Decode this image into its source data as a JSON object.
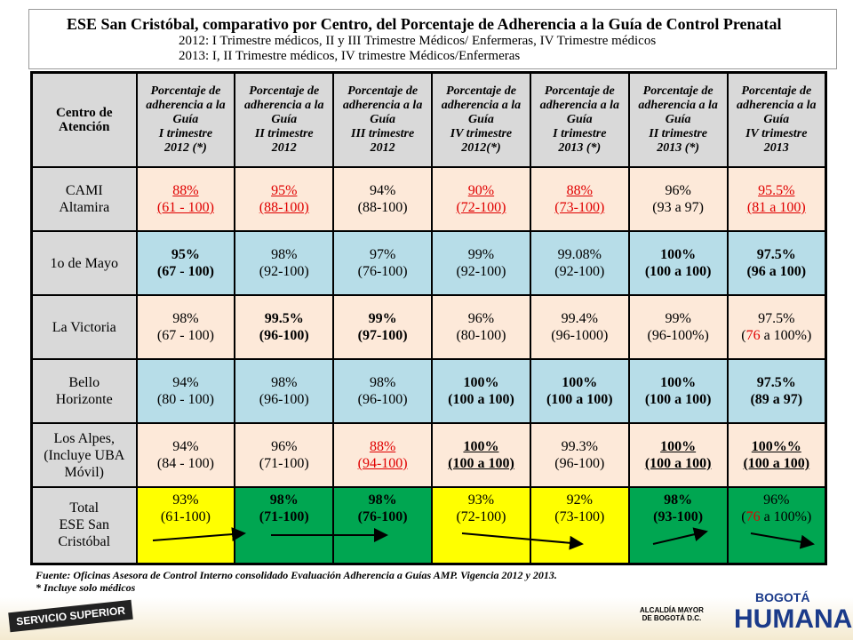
{
  "header": {
    "title": "ESE San Cristóbal, comparativo por Centro, del Porcentaje de Adherencia a la Guía de Control Prenatal",
    "subtitle_lines": [
      "2012: I Trimestre médicos, II  y III Trimestre Médicos/ Enfermeras,  IV Trimestre médicos",
      "2013: I, II Trimestre médicos, IV trimestre Médicos/Enfermeras"
    ]
  },
  "table": {
    "columns": [
      [
        "Centro de",
        "Atención"
      ],
      [
        "Porcentaje de",
        "adherencia a la",
        "Guía",
        "I trimestre",
        "2012 (*)"
      ],
      [
        "Porcentaje de",
        "adherencia a la",
        "Guía",
        "II trimestre",
        "2012"
      ],
      [
        "Porcentaje de",
        "adherencia a la",
        "Guía",
        "III trimestre",
        "2012"
      ],
      [
        "Porcentaje de",
        "adherencia a la",
        "Guía",
        "IV trimestre",
        "2012(*)"
      ],
      [
        "Porcentaje de",
        "adherencia a la",
        "Guía",
        "I trimestre",
        "2013 (*)"
      ],
      [
        "Porcentaje de",
        "adherencia a la",
        "Guía",
        "II trimestre",
        "2013 (*)"
      ],
      [
        "Porcentaje de",
        "adherencia a la",
        "Guía",
        "IV trimestre",
        "2013"
      ]
    ],
    "rows": [
      {
        "center": [
          "CAMI",
          "Altamira"
        ],
        "background": "#fde9d9",
        "cells": [
          {
            "pct": "88%",
            "range": "(61 - 100)",
            "style": "red-underline"
          },
          {
            "pct": "95%",
            "range": "(88-100)",
            "style": "red-underline"
          },
          {
            "pct": "94%",
            "range": "(88-100)",
            "style": "normal"
          },
          {
            "pct": "90%",
            "range": "(72-100)",
            "style": "red-underline"
          },
          {
            "pct": "88%",
            "range": "(73-100)",
            "style": "red-underline"
          },
          {
            "pct": "96%",
            "range": "(93 a 97)",
            "style": "normal"
          },
          {
            "pct": "95.5%",
            "range": "(81 a 100)",
            "style": "red-underline"
          }
        ]
      },
      {
        "center": [
          "1o de Mayo"
        ],
        "background": "#b7dde8",
        "cells": [
          {
            "pct": "95%",
            "range": "(67 - 100)",
            "style": "bold"
          },
          {
            "pct": "98%",
            "range": "(92-100)",
            "style": "normal"
          },
          {
            "pct": "97%",
            "range": "(76-100)",
            "style": "normal"
          },
          {
            "pct": "99%",
            "range": "(92-100)",
            "style": "normal"
          },
          {
            "pct": "99.08%",
            "range": "(92-100)",
            "style": "normal"
          },
          {
            "pct": "100%",
            "range": "(100 a 100)",
            "style": "bold"
          },
          {
            "pct": "97.5%",
            "range": "(96 a 100)",
            "style": "bold"
          }
        ]
      },
      {
        "center": [
          "La Victoria"
        ],
        "background": "#fde9d9",
        "cells": [
          {
            "pct": "98%",
            "range": "(67 - 100)",
            "style": "normal"
          },
          {
            "pct": "99.5%",
            "range": "(96-100)",
            "style": "bold"
          },
          {
            "pct": "99%",
            "range": "(97-100)",
            "style": "bold"
          },
          {
            "pct": "96%",
            "range": "(80-100)",
            "style": "normal"
          },
          {
            "pct": "99.4%",
            "range": "(96-1000)",
            "style": "normal"
          },
          {
            "pct": "99%",
            "range": "(96-100%)",
            "style": "normal"
          },
          {
            "pct": "97.5%",
            "range": [
              {
                "text": "(",
                "red": false
              },
              {
                "text": "76",
                "red": true
              },
              {
                "text": " a 100%)",
                "red": false
              }
            ],
            "style": "normal"
          }
        ]
      },
      {
        "center": [
          "Bello",
          "Horizonte"
        ],
        "background": "#b7dde8",
        "cells": [
          {
            "pct": "94%",
            "range": "(80 - 100)",
            "style": "normal"
          },
          {
            "pct": "98%",
            "range": "(96-100)",
            "style": "normal"
          },
          {
            "pct": "98%",
            "range": "(96-100)",
            "style": "normal"
          },
          {
            "pct": "100%",
            "range": "(100 a 100)",
            "style": "bold"
          },
          {
            "pct": "100%",
            "range": "(100 a 100)",
            "style": "bold"
          },
          {
            "pct": "100%",
            "range": "(100 a 100)",
            "style": "bold"
          },
          {
            "pct": "97.5%",
            "range": "(89 a 97)",
            "style": "bold"
          }
        ]
      },
      {
        "center": [
          "Los Alpes,",
          "(Incluye UBA",
          "Móvil)"
        ],
        "background": "#fde9d9",
        "cells": [
          {
            "pct": "94%",
            "range": "(84 - 100)",
            "style": "normal"
          },
          {
            "pct": "96%",
            "range": "(71-100)",
            "style": "normal"
          },
          {
            "pct": "88%",
            "range": "(94-100)",
            "style": "red-underline"
          },
          {
            "pct": "100%",
            "range": "(100 a 100)",
            "style": "bold-underline"
          },
          {
            "pct": "99.3%",
            "range": "(96-100)",
            "style": "normal"
          },
          {
            "pct": "100%",
            "range": "(100 a 100)",
            "style": "bold-underline"
          },
          {
            "pct": "100%%",
            "range": "(100 a 100)",
            "style": "bold-underline"
          }
        ]
      },
      {
        "center": [
          "Total",
          "ESE San",
          "Cristóbal"
        ],
        "background": "#ffffff",
        "total": true,
        "cells": [
          {
            "pct": "93%",
            "range": "(61-100)",
            "style": "normal",
            "background": "#ffff00"
          },
          {
            "pct": "98%",
            "range": "(71-100)",
            "style": "bold",
            "background": "#00a651"
          },
          {
            "pct": "98%",
            "range": "(76-100)",
            "style": "bold",
            "background": "#00a651"
          },
          {
            "pct": "93%",
            "range": "(72-100)",
            "style": "normal",
            "background": "#ffff00"
          },
          {
            "pct": "92%",
            "range": "(73-100)",
            "style": "normal",
            "background": "#ffff00"
          },
          {
            "pct": "98%",
            "range": "(93-100)",
            "style": "bold",
            "background": "#00a651"
          },
          {
            "pct": "96%",
            "range": [
              {
                "text": "(",
                "red": false
              },
              {
                "text": "76",
                "red": true
              },
              {
                "text": " a 100%)",
                "red": false
              }
            ],
            "style": "normal",
            "background": "#00a651"
          }
        ]
      }
    ]
  },
  "footer": {
    "source": "Fuente: Oficinas Asesora de Control Interno consolidado Evaluación Adherencia a Guías AMP. Vigencia 2012  y 2013.",
    "note": "* Incluye  solo médicos"
  },
  "logos": {
    "left": "SERVICIO SUPERIOR",
    "alcaldia": [
      "ALCALDÍA MAYOR",
      "DE BOGOTÁ D.C."
    ],
    "bogota": "BOGOTÁ",
    "humana": "HUMANA"
  }
}
